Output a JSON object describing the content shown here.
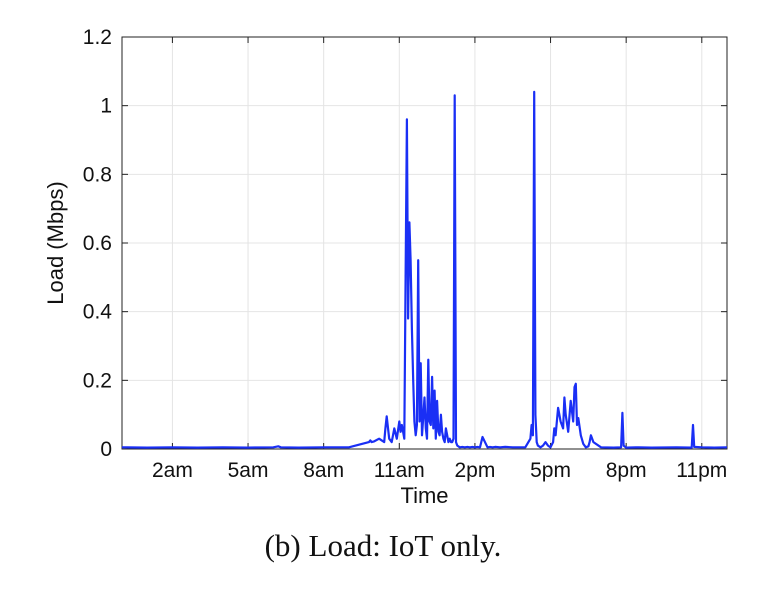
{
  "caption": "(b) Load: IoT only.",
  "chart_data": {
    "type": "line",
    "xlabel": "Time",
    "ylabel": "Load (Mbps)",
    "x_unit": "hour of day",
    "xlim": [
      0,
      24
    ],
    "ylim": [
      0,
      1.2
    ],
    "grid": true,
    "x_ticks": [
      {
        "value": 2,
        "label": "2am"
      },
      {
        "value": 5,
        "label": "5am"
      },
      {
        "value": 8,
        "label": "8am"
      },
      {
        "value": 11,
        "label": "11am"
      },
      {
        "value": 14,
        "label": "2pm"
      },
      {
        "value": 17,
        "label": "5pm"
      },
      {
        "value": 20,
        "label": "8pm"
      },
      {
        "value": 23,
        "label": "11pm"
      }
    ],
    "y_ticks": [
      {
        "value": 0,
        "label": "0"
      },
      {
        "value": 0.2,
        "label": "0.2"
      },
      {
        "value": 0.4,
        "label": "0.4"
      },
      {
        "value": 0.6,
        "label": "0.6"
      },
      {
        "value": 0.8,
        "label": "0.8"
      },
      {
        "value": 1.0,
        "label": "1"
      },
      {
        "value": 1.2,
        "label": "1.2"
      }
    ],
    "series": [
      {
        "color": "#1a2ff5",
        "x": [
          0,
          1,
          2,
          3,
          4,
          5,
          6,
          6.2,
          6.3,
          7,
          8,
          9,
          9.8,
          9.85,
          9.9,
          10,
          10.2,
          10.4,
          10.45,
          10.5,
          10.6,
          10.7,
          10.75,
          10.8,
          10.9,
          11.0,
          11.05,
          11.1,
          11.15,
          11.2,
          11.25,
          11.3,
          11.35,
          11.4,
          11.45,
          11.5,
          11.55,
          11.6,
          11.65,
          11.7,
          11.75,
          11.8,
          11.85,
          11.9,
          11.95,
          12.0,
          12.05,
          12.1,
          12.15,
          12.2,
          12.25,
          12.3,
          12.35,
          12.4,
          12.45,
          12.5,
          12.55,
          12.6,
          12.65,
          12.7,
          12.75,
          12.8,
          12.85,
          12.9,
          12.95,
          13.0,
          13.05,
          13.1,
          13.15,
          13.2,
          13.25,
          13.3,
          13.4,
          13.5,
          13.6,
          13.7,
          13.8,
          13.9,
          14.0,
          14.1,
          14.2,
          14.3,
          14.5,
          14.6,
          14.7,
          14.8,
          15.0,
          15.2,
          15.5,
          16.0,
          16.2,
          16.25,
          16.3,
          16.35,
          16.4,
          16.45,
          16.5,
          16.6,
          16.7,
          16.8,
          16.9,
          17.0,
          17.1,
          17.15,
          17.2,
          17.3,
          17.4,
          17.5,
          17.55,
          17.6,
          17.7,
          17.8,
          17.9,
          17.95,
          18.0,
          18.05,
          18.1,
          18.2,
          18.3,
          18.4,
          18.5,
          18.55,
          18.6,
          18.7,
          19.0,
          19.5,
          19.8,
          19.85,
          19.9,
          20.0,
          20.5,
          21.0,
          22.0,
          22.6,
          22.65,
          22.7,
          23.0,
          23.5,
          24.0
        ],
        "y": [
          0.005,
          0.004,
          0.005,
          0.004,
          0.005,
          0.004,
          0.005,
          0.008,
          0.005,
          0.004,
          0.005,
          0.005,
          0.02,
          0.025,
          0.02,
          0.022,
          0.03,
          0.02,
          0.06,
          0.095,
          0.03,
          0.02,
          0.04,
          0.06,
          0.03,
          0.08,
          0.05,
          0.07,
          0.05,
          0.03,
          0.5,
          0.96,
          0.38,
          0.66,
          0.55,
          0.35,
          0.2,
          0.08,
          0.04,
          0.07,
          0.55,
          0.08,
          0.25,
          0.04,
          0.09,
          0.15,
          0.06,
          0.03,
          0.26,
          0.08,
          0.07,
          0.21,
          0.06,
          0.17,
          0.03,
          0.14,
          0.05,
          0.04,
          0.1,
          0.05,
          0.03,
          0.02,
          0.06,
          0.04,
          0.02,
          0.03,
          0.02,
          0.02,
          0.03,
          1.03,
          0.02,
          0.01,
          0.005,
          0.006,
          0.005,
          0.006,
          0.005,
          0.006,
          0.005,
          0.006,
          0.005,
          0.035,
          0.005,
          0.006,
          0.005,
          0.006,
          0.005,
          0.006,
          0.005,
          0.005,
          0.03,
          0.07,
          0.04,
          1.04,
          0.1,
          0.02,
          0.01,
          0.005,
          0.01,
          0.02,
          0.01,
          0.005,
          0.02,
          0.06,
          0.04,
          0.12,
          0.08,
          0.06,
          0.15,
          0.1,
          0.05,
          0.14,
          0.08,
          0.18,
          0.19,
          0.07,
          0.09,
          0.04,
          0.015,
          0.005,
          0.008,
          0.02,
          0.04,
          0.02,
          0.005,
          0.004,
          0.005,
          0.105,
          0.01,
          0.004,
          0.005,
          0.004,
          0.005,
          0.004,
          0.07,
          0.006,
          0.005,
          0.004,
          0.005
        ]
      }
    ]
  }
}
